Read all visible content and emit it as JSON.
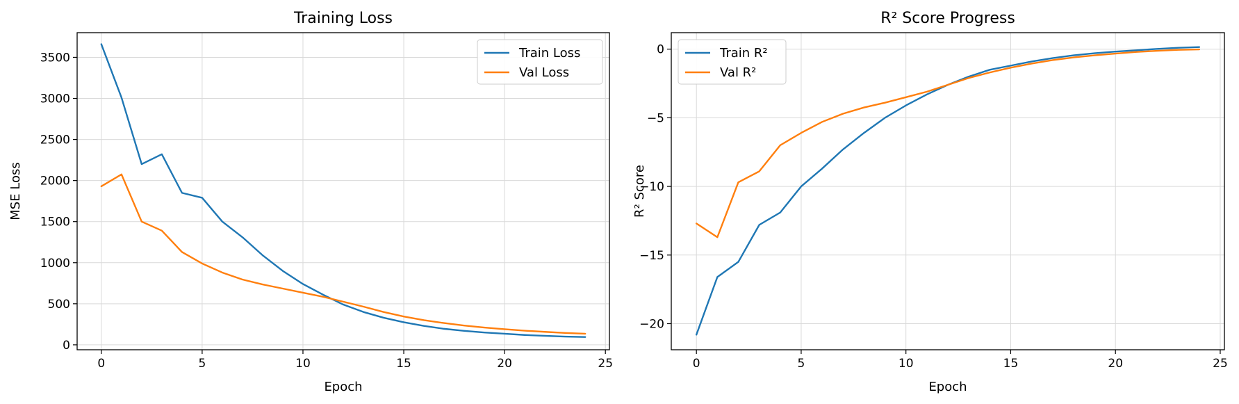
{
  "chart_data": [
    {
      "type": "line",
      "title": "Training Loss",
      "xlabel": "Epoch",
      "ylabel": "MSE Loss",
      "xlim": [
        -1.2,
        25.2
      ],
      "ylim": [
        -60,
        3800
      ],
      "xticks": [
        0,
        5,
        10,
        15,
        20,
        25
      ],
      "yticks": [
        0,
        500,
        1000,
        1500,
        2000,
        2500,
        3000,
        3500
      ],
      "grid": true,
      "legend_position": "top-right",
      "x": [
        0,
        1,
        2,
        3,
        4,
        5,
        6,
        7,
        8,
        9,
        10,
        11,
        12,
        13,
        14,
        15,
        16,
        17,
        18,
        19,
        20,
        21,
        22,
        23,
        24
      ],
      "series": [
        {
          "name": "Train Loss",
          "color": "#1f77b4",
          "values": [
            3660,
            3010,
            2200,
            2320,
            1850,
            1790,
            1500,
            1310,
            1090,
            900,
            740,
            610,
            490,
            400,
            330,
            275,
            230,
            195,
            170,
            150,
            135,
            120,
            110,
            100,
            95
          ]
        },
        {
          "name": "Val Loss",
          "color": "#ff7f0e",
          "values": [
            1930,
            2075,
            1500,
            1390,
            1130,
            990,
            880,
            795,
            735,
            685,
            635,
            585,
            525,
            465,
            400,
            345,
            300,
            265,
            235,
            210,
            190,
            172,
            158,
            145,
            135
          ]
        }
      ]
    },
    {
      "type": "line",
      "title": "R² Score Progress",
      "xlabel": "Epoch",
      "ylabel": "R² Score",
      "xlim": [
        -1.2,
        25.2
      ],
      "ylim": [
        -21.9,
        1.2
      ],
      "xticks": [
        0,
        5,
        10,
        15,
        20,
        25
      ],
      "yticks": [
        0,
        -5,
        -10,
        -15,
        -20
      ],
      "grid": true,
      "legend_position": "top-left",
      "x": [
        0,
        1,
        2,
        3,
        4,
        5,
        6,
        7,
        8,
        9,
        10,
        11,
        12,
        13,
        14,
        15,
        16,
        17,
        18,
        19,
        20,
        21,
        22,
        23,
        24
      ],
      "series": [
        {
          "name": "Train R²",
          "color": "#1f77b4",
          "values": [
            -20.8,
            -16.6,
            -15.5,
            -12.8,
            -11.9,
            -10.0,
            -8.7,
            -7.3,
            -6.1,
            -5.0,
            -4.1,
            -3.3,
            -2.6,
            -2.0,
            -1.5,
            -1.2,
            -0.9,
            -0.65,
            -0.45,
            -0.3,
            -0.18,
            -0.08,
            0.02,
            0.1,
            0.15
          ]
        },
        {
          "name": "Val R²",
          "color": "#ff7f0e",
          "values": [
            -12.7,
            -13.7,
            -9.7,
            -8.9,
            -7.0,
            -6.1,
            -5.3,
            -4.7,
            -4.25,
            -3.9,
            -3.5,
            -3.1,
            -2.6,
            -2.1,
            -1.7,
            -1.35,
            -1.05,
            -0.8,
            -0.6,
            -0.45,
            -0.32,
            -0.2,
            -0.12,
            -0.05,
            -0.02
          ]
        }
      ]
    }
  ]
}
